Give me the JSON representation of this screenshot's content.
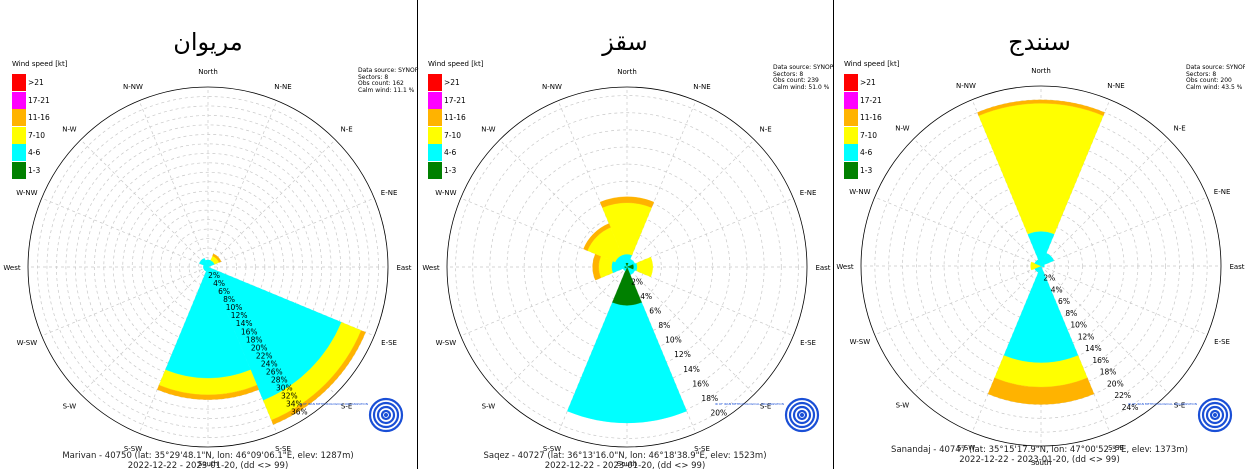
{
  "legend": {
    "title": "Wind speed [kt]",
    "items": [
      {
        "label": ">21",
        "color": "#ff0000"
      },
      {
        "label": "17-21",
        "color": "#ff00ff"
      },
      {
        "label": "11-16",
        "color": "#ffb300"
      },
      {
        "label": "7-10",
        "color": "#ffff00"
      },
      {
        "label": "4-6",
        "color": "#00ffff"
      },
      {
        "label": "1-3",
        "color": "#008000"
      }
    ]
  },
  "directions": [
    "North",
    "N-NE",
    "N-E",
    "E-NE",
    "East",
    "E-SE",
    "S-E",
    "S-SE",
    "South",
    "S-SW",
    "S-W",
    "W-SW",
    "West",
    "W-NW",
    "N-W",
    "N-NW"
  ],
  "logo_text": "IR OF IRAN METEOROLOGICAL ORGANIZATION",
  "chart_data": [
    {
      "type": "polar-bar",
      "title": "مریوان",
      "source": [
        "Data source: SYNOP",
        "Sectors: 8",
        "Obs count: 162",
        "Calm wind: 11.1 %"
      ],
      "footer": [
        "Marivan - 40750 (lat: 35°29'48.1\"N, lon: 46°09'06.1\"E, elev: 1287m)",
        "2022-12-22 - 2023-01-20, (dd <> 99)"
      ],
      "rmax": 38,
      "ticks": [
        "2%",
        "4%",
        "6%",
        "8%",
        "10%",
        "12%",
        "14%",
        "16%",
        "18%",
        "20%",
        "22%",
        "24%",
        "26%",
        "28%",
        "30%",
        "32%",
        "34%",
        "36%"
      ],
      "series_order": [
        ">21",
        "17-21",
        "11-16",
        "7-10",
        "4-6",
        "1-3"
      ],
      "sectors": [
        {
          "dir": "North",
          "segments": [
            {
              "speed": "4-6",
              "value": 1.5
            }
          ]
        },
        {
          "dir": "N-E",
          "segments": [
            {
              "speed": "4-6",
              "value": 1.5
            },
            {
              "speed": "7-10",
              "value": 1.0
            },
            {
              "speed": "11-16",
              "value": 0.5
            }
          ]
        },
        {
          "dir": "East",
          "segments": []
        },
        {
          "dir": "S-E",
          "segments": [
            {
              "speed": "4-6",
              "value": 30.5
            },
            {
              "speed": "7-10",
              "value": 4.5
            },
            {
              "speed": "11-16",
              "value": 1.0
            }
          ]
        },
        {
          "dir": "South",
          "segments": [
            {
              "speed": "4-6",
              "value": 23.5
            },
            {
              "speed": "7-10",
              "value": 3.5
            },
            {
              "speed": "11-16",
              "value": 1.0
            }
          ]
        },
        {
          "dir": "S-W",
          "segments": [
            {
              "speed": "4-6",
              "value": 1.0
            }
          ]
        },
        {
          "dir": "West",
          "segments": [
            {
              "speed": "4-6",
              "value": 1.0
            }
          ]
        },
        {
          "dir": "N-W",
          "segments": [
            {
              "speed": "4-6",
              "value": 2.0
            }
          ]
        }
      ]
    },
    {
      "type": "polar-bar",
      "title": "سقز",
      "source": [
        "Data source: SYNOP",
        "Sectors: 8",
        "Obs count: 239",
        "Calm wind: 51.0 %"
      ],
      "footer": [
        "Saqez - 40727 (lat: 36°13'16.0\"N, lon: 46°18'38.9\"E, elev: 1523m)",
        "2022-12-22 - 2023-01-20, (dd <> 99)"
      ],
      "rmax": 21,
      "ticks": [
        "2%",
        "4%",
        "6%",
        "8%",
        "10%",
        "12%",
        "14%",
        "16%",
        "18%",
        "20%"
      ],
      "series_order": [
        ">21",
        "17-21",
        "11-16",
        "7-10",
        "4-6",
        "1-3"
      ],
      "sectors": [
        {
          "dir": "North",
          "segments": [
            {
              "speed": "1-3",
              "value": 0.5
            },
            {
              "speed": "4-6",
              "value": 1.0
            },
            {
              "speed": "7-10",
              "value": 6.0
            },
            {
              "speed": "11-16",
              "value": 0.7
            }
          ]
        },
        {
          "dir": "N-E",
          "segments": [
            {
              "speed": "4-6",
              "value": 1.0
            }
          ]
        },
        {
          "dir": "East",
          "segments": [
            {
              "speed": "1-3",
              "value": 0.8
            },
            {
              "speed": "4-6",
              "value": 0.4
            },
            {
              "speed": "7-10",
              "value": 1.8
            }
          ]
        },
        {
          "dir": "S-E",
          "segments": [
            {
              "speed": "4-6",
              "value": 1.0
            }
          ]
        },
        {
          "dir": "South",
          "segments": [
            {
              "speed": "1-3",
              "value": 4.5
            },
            {
              "speed": "4-6",
              "value": 13.7
            }
          ]
        },
        {
          "dir": "S-W",
          "segments": [
            {
              "speed": "4-6",
              "value": 0.5
            }
          ]
        },
        {
          "dir": "West",
          "segments": [
            {
              "speed": "1-3",
              "value": 0.3
            },
            {
              "speed": "4-6",
              "value": 1.5
            },
            {
              "speed": "7-10",
              "value": 1.5
            },
            {
              "speed": "11-16",
              "value": 0.7
            }
          ]
        },
        {
          "dir": "N-W",
          "segments": [
            {
              "speed": "4-6",
              "value": 1.5
            },
            {
              "speed": "7-10",
              "value": 3.5
            },
            {
              "speed": "11-16",
              "value": 0.5
            }
          ]
        }
      ]
    },
    {
      "type": "polar-bar",
      "title": "سنندج",
      "source": [
        "Data source: SYNOP",
        "Sectors: 8",
        "Obs count: 200",
        "Calm wind: 43.5 %"
      ],
      "footer": [
        "Sanandaj - 40747 (lat: 35°15'17.9\"N, lon: 47°00'52.3\"E, elev: 1373m)",
        "2022-12-22 - 2023-01-20, (dd <> 99)"
      ],
      "rmax": 26,
      "ticks": [
        "2%",
        "4%",
        "6%",
        "8%",
        "10%",
        "12%",
        "14%",
        "16%",
        "18%",
        "20%",
        "22%",
        "24%"
      ],
      "series_order": [
        ">21",
        "17-21",
        "11-16",
        "7-10",
        "4-6",
        "1-3"
      ],
      "sectors": [
        {
          "dir": "North",
          "segments": [
            {
              "speed": "4-6",
              "value": 5.0
            },
            {
              "speed": "7-10",
              "value": 18.5
            },
            {
              "speed": "11-16",
              "value": 0.5
            }
          ]
        },
        {
          "dir": "N-E",
          "segments": [
            {
              "speed": "4-6",
              "value": 2.0
            }
          ]
        },
        {
          "dir": "East",
          "segments": [
            {
              "speed": "4-6",
              "value": 0.5
            }
          ]
        },
        {
          "dir": "S-E",
          "segments": []
        },
        {
          "dir": "South",
          "segments": [
            {
              "speed": "4-6",
              "value": 14.0
            },
            {
              "speed": "7-10",
              "value": 3.5
            },
            {
              "speed": "11-16",
              "value": 2.5
            }
          ]
        },
        {
          "dir": "S-W",
          "segments": [
            {
              "speed": "4-6",
              "value": 1.0
            }
          ]
        },
        {
          "dir": "West",
          "segments": [
            {
              "speed": "7-10",
              "value": 1.5
            }
          ]
        },
        {
          "dir": "N-W",
          "segments": [
            {
              "speed": "4-6",
              "value": 1.0
            }
          ]
        }
      ]
    }
  ]
}
